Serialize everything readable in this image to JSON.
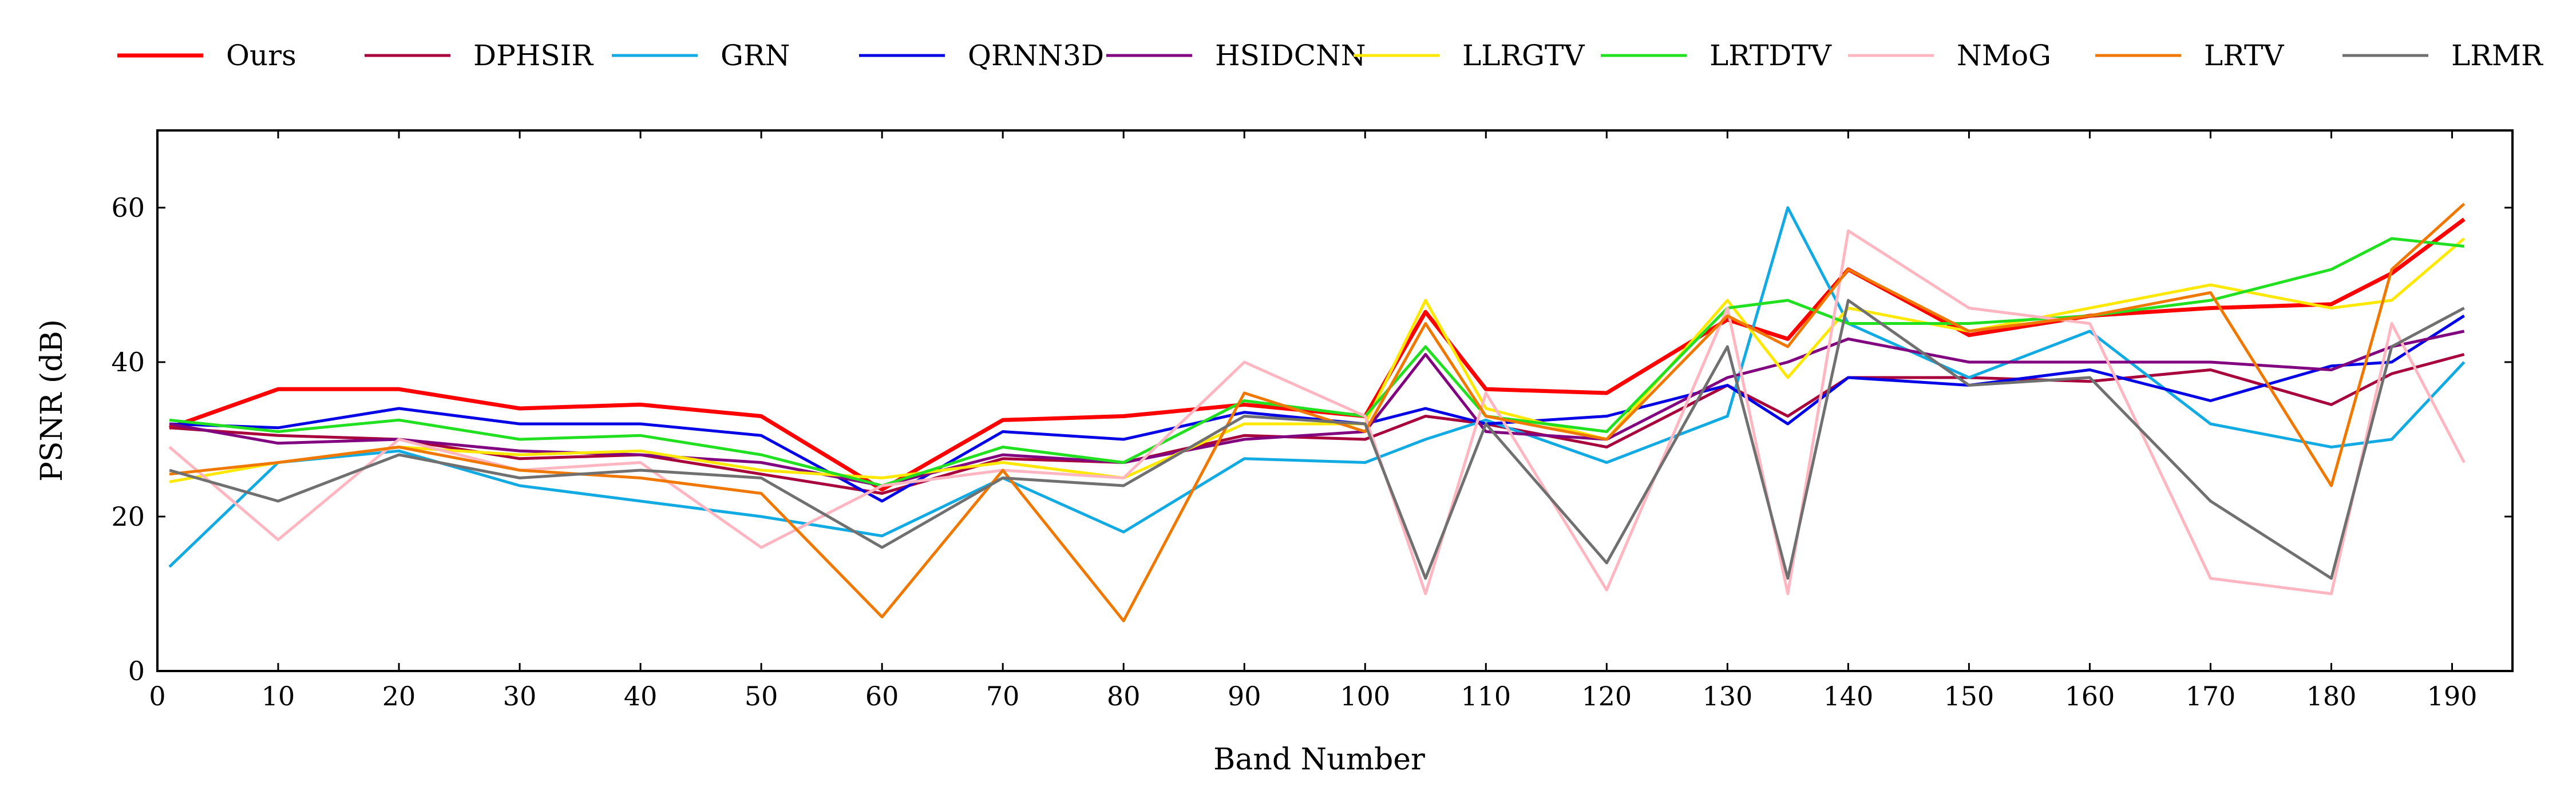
{
  "chart_data": {
    "type": "line",
    "title": "",
    "xlabel": "Band Number",
    "ylabel": "PSNR (dB)",
    "xlim": [
      0,
      195
    ],
    "ylim": [
      0,
      70
    ],
    "x_ticks": [
      0,
      10,
      20,
      30,
      40,
      50,
      60,
      70,
      80,
      90,
      100,
      110,
      120,
      130,
      140,
      150,
      160,
      170,
      180,
      190
    ],
    "y_ticks": [
      0,
      20,
      40,
      60
    ],
    "grid": false,
    "legend_position": "top",
    "x": [
      1,
      10,
      20,
      30,
      40,
      50,
      60,
      70,
      80,
      90,
      100,
      105,
      110,
      120,
      130,
      135,
      140,
      150,
      160,
      170,
      180,
      185,
      191
    ],
    "series": [
      {
        "name": "Ours",
        "color": "#ff0000",
        "values": [
          31.5,
          36.5,
          36.5,
          34.0,
          34.5,
          33.0,
          23.5,
          32.5,
          33.0,
          34.5,
          33.0,
          46.5,
          36.5,
          36.0,
          45.5,
          43.0,
          52.0,
          43.5,
          46.0,
          47.0,
          47.5,
          51.5,
          58.5
        ]
      },
      {
        "name": "DPHSIR",
        "color": "#a8003a",
        "values": [
          31.5,
          30.5,
          30.0,
          27.5,
          28.0,
          25.5,
          23.0,
          27.5,
          27.0,
          30.5,
          30.0,
          33.0,
          32.0,
          29.0,
          37.0,
          33.0,
          38.0,
          38.0,
          37.5,
          39.0,
          34.5,
          38.5,
          41.0
        ]
      },
      {
        "name": "GRN",
        "color": "#12aae2",
        "values": [
          13.5,
          27.0,
          28.5,
          24.0,
          22.0,
          20.0,
          17.5,
          25.0,
          18.0,
          27.5,
          27.0,
          30.0,
          32.5,
          27.0,
          33.0,
          60.0,
          45.0,
          38.0,
          44.0,
          32.0,
          29.0,
          30.0,
          40.0
        ]
      },
      {
        "name": "QRNN3D",
        "color": "#0000e6",
        "values": [
          32.0,
          31.5,
          34.0,
          32.0,
          32.0,
          30.5,
          22.0,
          31.0,
          30.0,
          33.5,
          32.0,
          34.0,
          32.0,
          33.0,
          37.0,
          32.0,
          38.0,
          37.0,
          39.0,
          35.0,
          39.5,
          40.0,
          46.0
        ]
      },
      {
        "name": "HSIDCNN",
        "color": "#800080",
        "values": [
          32.0,
          29.5,
          30.0,
          28.5,
          28.0,
          27.0,
          24.0,
          28.0,
          27.0,
          30.0,
          31.0,
          41.0,
          31.0,
          30.0,
          38.0,
          40.0,
          43.0,
          40.0,
          40.0,
          40.0,
          39.0,
          42.0,
          44.0
        ]
      },
      {
        "name": "LLRGTV",
        "color": "#ffe800",
        "values": [
          24.5,
          27.0,
          29.0,
          28.0,
          28.5,
          26.0,
          25.0,
          27.0,
          25.0,
          32.0,
          32.0,
          48.0,
          34.0,
          30.0,
          48.0,
          38.0,
          47.0,
          44.0,
          47.0,
          50.0,
          47.0,
          48.0,
          56.0
        ]
      },
      {
        "name": "LRTDTV",
        "color": "#20e020",
        "values": [
          32.5,
          31.0,
          32.5,
          30.0,
          30.5,
          28.0,
          24.0,
          29.0,
          27.0,
          35.0,
          33.0,
          42.0,
          33.0,
          31.0,
          47.0,
          48.0,
          45.0,
          45.0,
          46.0,
          48.0,
          52.0,
          56.0,
          55.0
        ]
      },
      {
        "name": "NMoG",
        "color": "#ffb6c1",
        "values": [
          29.0,
          17.0,
          30.0,
          26.0,
          27.0,
          16.0,
          24.0,
          26.0,
          25.0,
          40.0,
          33.0,
          10.0,
          36.0,
          10.5,
          47.0,
          10.0,
          57.0,
          47.0,
          45.0,
          12.0,
          10.0,
          45.0,
          27.0
        ]
      },
      {
        "name": "LRTV",
        "color": "#f07800",
        "values": [
          25.5,
          27.0,
          29.0,
          26.0,
          25.0,
          23.0,
          7.0,
          26.0,
          6.5,
          36.0,
          31.0,
          45.0,
          33.0,
          30.0,
          46.0,
          42.0,
          52.0,
          44.0,
          46.0,
          49.0,
          24.0,
          52.0,
          60.5
        ]
      },
      {
        "name": "LRMR",
        "color": "#707070",
        "values": [
          26.0,
          22.0,
          28.0,
          25.0,
          26.0,
          25.0,
          16.0,
          25.0,
          24.0,
          33.0,
          32.0,
          12.0,
          32.0,
          14.0,
          42.0,
          12.0,
          48.0,
          37.0,
          38.0,
          22.0,
          12.0,
          42.0,
          47.0
        ]
      }
    ]
  }
}
